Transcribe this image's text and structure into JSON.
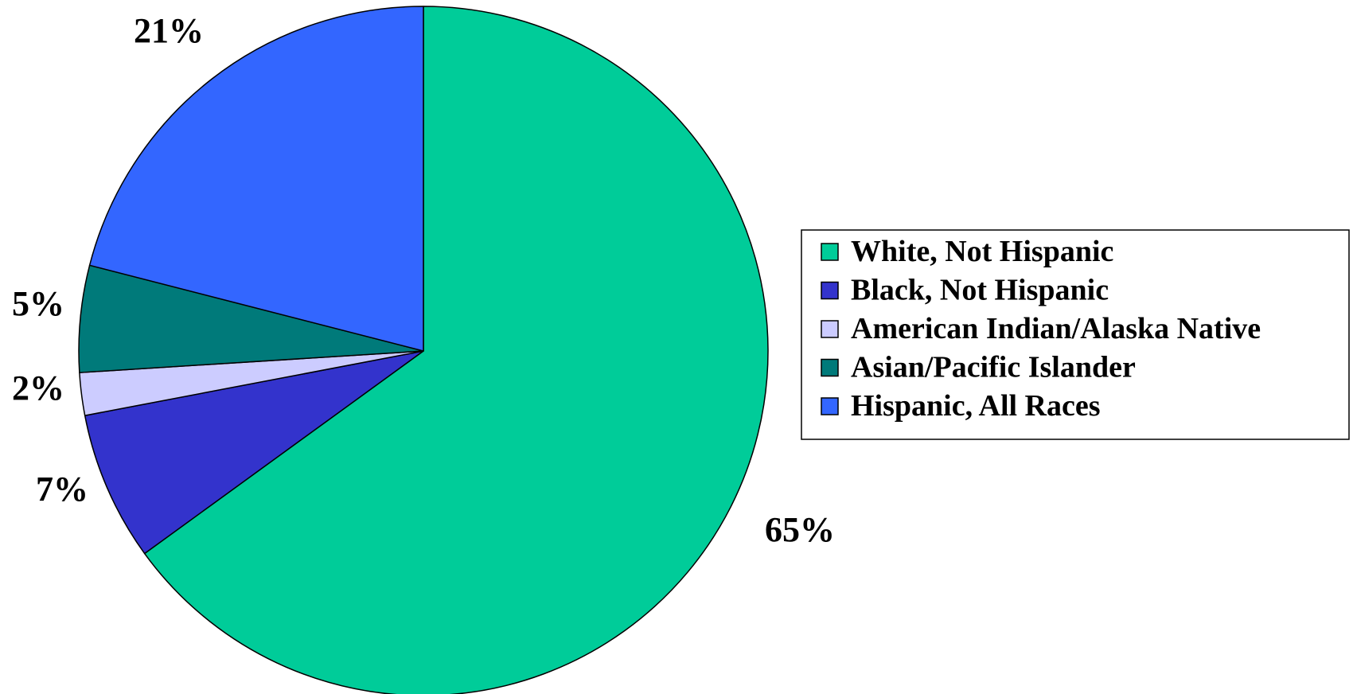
{
  "chart_data": {
    "type": "pie",
    "title": "",
    "start_angle_deg": 90,
    "direction": "clockwise",
    "legend_position": "right",
    "slices": [
      {
        "name": "White, Not Hispanic",
        "value": 65,
        "label": "65%",
        "color": "#00CC99"
      },
      {
        "name": "Black, Not Hispanic",
        "value": 7,
        "label": "7%",
        "color": "#3333CC"
      },
      {
        "name": "American Indian/Alaska Native",
        "value": 2,
        "label": "2%",
        "color": "#CCCCFF"
      },
      {
        "name": "Asian/Pacific Islander",
        "value": 5,
        "label": "5%",
        "color": "#007A7A"
      },
      {
        "name": "Hispanic, All Races",
        "value": 21,
        "label": "21%",
        "color": "#3366FF"
      }
    ]
  }
}
